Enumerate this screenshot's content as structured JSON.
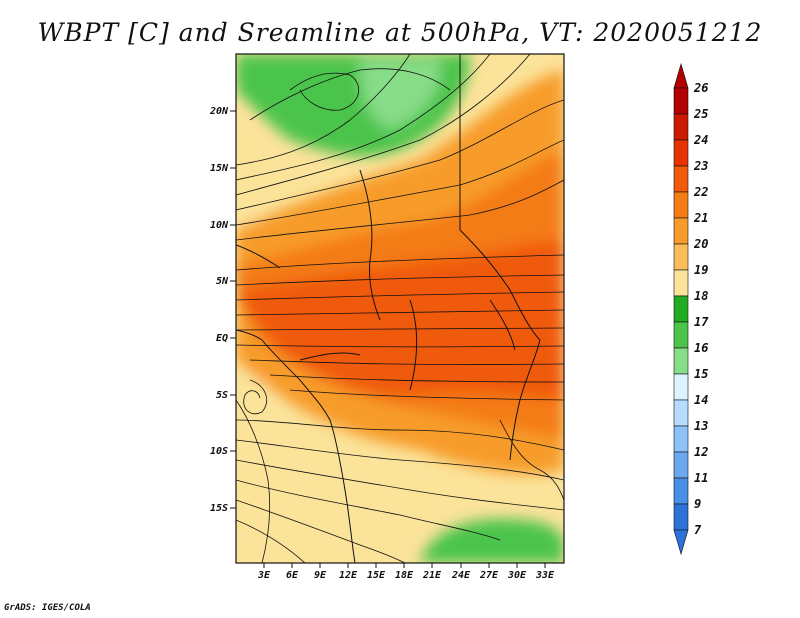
{
  "title": "WBPT [C] and Sreamline at 500hPa, VT: 2020051212",
  "credit": "GrADS: IGES/COLA",
  "map": {
    "lat_ticks": [
      "20N",
      "15N",
      "10N",
      "5N",
      "EQ",
      "5S",
      "10S",
      "15S"
    ],
    "lon_ticks": [
      "3E",
      "6E",
      "9E",
      "12E",
      "15E",
      "18E",
      "21E",
      "24E",
      "27E",
      "30E",
      "33E"
    ]
  },
  "colorbar": {
    "labels": [
      "26",
      "25",
      "24",
      "23",
      "22",
      "21",
      "20",
      "19",
      "18",
      "17",
      "16",
      "15",
      "14",
      "13",
      "12",
      "11",
      "9",
      "7"
    ],
    "colors": [
      "#b30000",
      "#cc1a00",
      "#e63300",
      "#f05a0a",
      "#f47c14",
      "#f79c2a",
      "#f9bd5b",
      "#fbe39a",
      "#22aa22",
      "#4cc44c",
      "#88dd88",
      "#ddf3ff",
      "#b6dcff",
      "#8cc2f8",
      "#6aa8f0",
      "#4a8fe6",
      "#2d72d8"
    ]
  }
}
